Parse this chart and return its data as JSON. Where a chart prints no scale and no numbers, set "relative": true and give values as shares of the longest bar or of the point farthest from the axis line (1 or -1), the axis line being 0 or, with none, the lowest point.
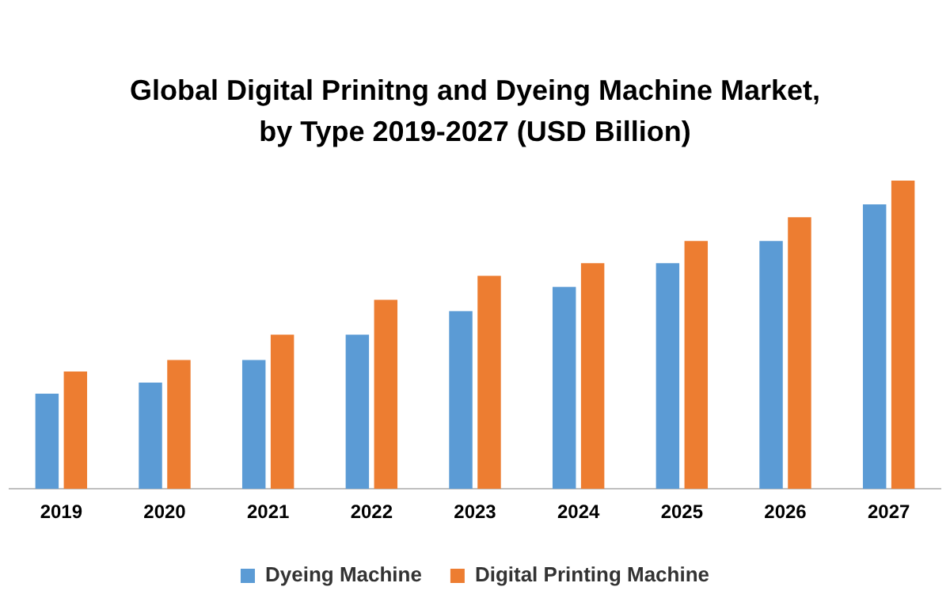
{
  "chart_data": {
    "type": "bar",
    "title": "Global Digital Prinitng and Dyeing Machine Market, by Type 2019-2027 (USD Billion)",
    "relative": true,
    "categories": [
      "2019",
      "2020",
      "2021",
      "2022",
      "2023",
      "2024",
      "2025",
      "2026",
      "2027"
    ],
    "series": [
      {
        "name": "Dyeing Machine",
        "color": "#5b9bd5",
        "values": [
          0.309,
          0.345,
          0.418,
          0.5,
          0.577,
          0.655,
          0.732,
          0.804,
          0.923
        ]
      },
      {
        "name": "Digital Printing Machine",
        "color": "#ed7d31",
        "values": [
          0.381,
          0.418,
          0.5,
          0.613,
          0.691,
          0.732,
          0.804,
          0.881,
          1
        ]
      }
    ],
    "legend": "bottom",
    "grid": false
  }
}
